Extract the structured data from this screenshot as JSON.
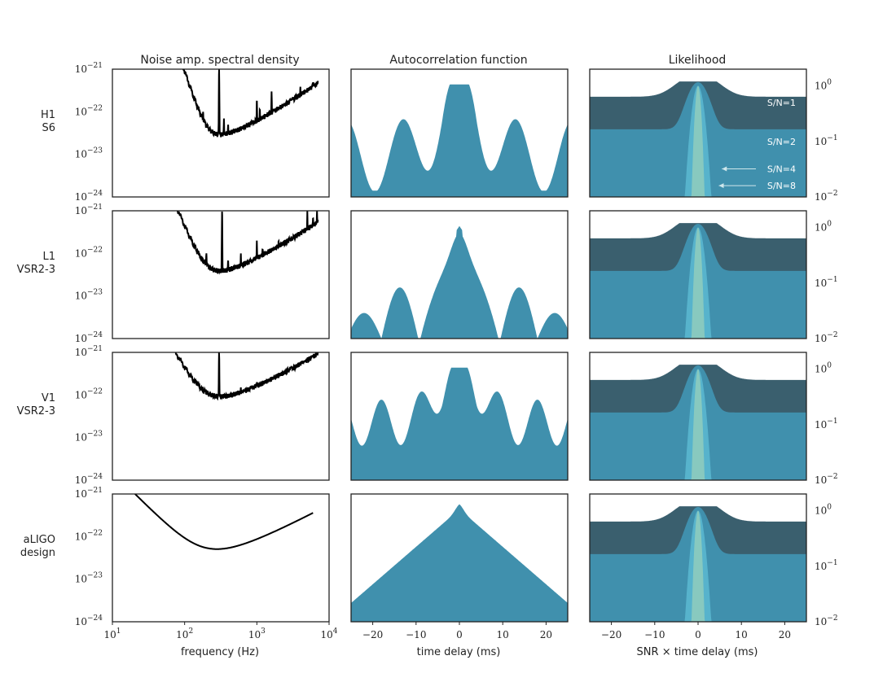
{
  "chart_data": {
    "type": "line",
    "columns": [
      {
        "title": "Noise amp. spectral density",
        "xlabel": "frequency (Hz)",
        "xscale": "log",
        "xlim": [
          10,
          10000
        ],
        "ylim": [
          1e-24,
          1e-21
        ],
        "xticks": [
          {
            "b": "10",
            "e": "1"
          },
          {
            "b": "10",
            "e": "2"
          },
          {
            "b": "10",
            "e": "3"
          },
          {
            "b": "10",
            "e": "4"
          }
        ],
        "yticks": [
          {
            "b": "10",
            "e": "−21"
          },
          {
            "b": "10",
            "e": "−22"
          },
          {
            "b": "10",
            "e": "−23"
          },
          {
            "b": "10",
            "e": "−24"
          }
        ]
      },
      {
        "title": "Autocorrelation function",
        "xlabel": "time delay (ms)",
        "xlim": [
          -25,
          25
        ],
        "xticks": [
          "−20",
          "−10",
          "0",
          "10",
          "20"
        ]
      },
      {
        "title": "Likelihood",
        "xlabel": "SNR × time delay (ms)",
        "xlim": [
          -25,
          25
        ],
        "ylim": [
          0.01,
          2
        ],
        "xticks": [
          "−20",
          "−10",
          "0",
          "10",
          "20"
        ],
        "yticks": [
          {
            "b": "10",
            "e": "0"
          },
          {
            "b": "10",
            "e": "−1"
          },
          {
            "b": "10",
            "e": "−2"
          }
        ]
      }
    ],
    "rows": [
      {
        "line1": "H1",
        "line2": "S6",
        "asd": {
          "start": 44,
          "end": 7000,
          "floor": 1.7e-23,
          "fmin": 220,
          "lowexp": 5,
          "highexp": 1.15,
          "top": 5e-22,
          "lines": [
            [
              46,
              9e-22
            ],
            [
              50,
              5e-22
            ],
            [
              60,
              4e-22
            ],
            [
              120,
              1.2e-22
            ],
            [
              180,
              1e-22
            ],
            [
              300,
              1e-21
            ],
            [
              350,
              7e-23
            ],
            [
              400,
              5e-23
            ],
            [
              1000,
              2e-22
            ],
            [
              1100,
              1.2e-22
            ],
            [
              1600,
              3e-22
            ],
            [
              4000,
              4e-22
            ],
            [
              6000,
              5e-22
            ]
          ]
        },
        "acf": {
          "shape": "oscillating",
          "peak": 0.88,
          "main": 0.55,
          "sl_amp": 0.28,
          "sl_period": 13,
          "floor": 0.32,
          "min": 0.05
        }
      },
      {
        "line1": "L1",
        "line2": "VSR2-3",
        "asd": {
          "start": 45,
          "end": 7000,
          "floor": 2.2e-23,
          "fmin": 210,
          "lowexp": 4,
          "highexp": 1.1,
          "top": 8e-22,
          "lines": [
            [
              46,
              1e-21
            ],
            [
              55,
              9e-22
            ],
            [
              120,
              1.5e-22
            ],
            [
              150,
              1.2e-22
            ],
            [
              200,
              1e-22
            ],
            [
              330,
              1e-21
            ],
            [
              400,
              7e-23
            ],
            [
              600,
              1e-22
            ],
            [
              1000,
              2e-22
            ],
            [
              1200,
              1.3e-22
            ],
            [
              2000,
              2e-22
            ],
            [
              3000,
              2.5e-22
            ],
            [
              5000,
              1e-21
            ],
            [
              6000,
              7e-22
            ],
            [
              6800,
              1e-21
            ]
          ]
        },
        "acf": {
          "shape": "lobed",
          "peak": 0.88
        }
      },
      {
        "line1": "V1",
        "line2": "VSR2-3",
        "asd": {
          "start": 40,
          "end": 7000,
          "floor": 5e-23,
          "fmin": 200,
          "lowexp": 3,
          "highexp": 1.0,
          "top": 3e-22,
          "lines": [
            [
              46,
              7e-22
            ],
            [
              50,
              4e-22
            ],
            [
              55,
              7e-22
            ],
            [
              60,
              3e-22
            ],
            [
              100,
              4e-22
            ],
            [
              150,
              2e-22
            ],
            [
              300,
              1e-21
            ],
            [
              350,
              1e-22
            ],
            [
              600,
              1.5e-22
            ],
            [
              1000,
              2e-22
            ],
            [
              2000,
              2e-22
            ],
            [
              5000,
              5e-22
            ],
            [
              7000,
              1e-21
            ]
          ]
        },
        "acf": {
          "shape": "oscillating",
          "peak": 0.88,
          "main": 0.45,
          "sl_amp": 0.18,
          "sl_period": 9,
          "floor": 0.45,
          "min": 0.2
        }
      },
      {
        "line1": "aLIGO",
        "line2": "design",
        "asd": {
          "start": 10,
          "end": 6000,
          "floor": 3.5e-23,
          "fmin": 220,
          "lowexp": 1.7,
          "highexp": 0.9,
          "top": 1.8e-22,
          "smooth": true,
          "lines": [
            [
              500,
              4e-23
            ]
          ]
        },
        "acf": {
          "shape": "triangle",
          "peak": 0.88
        }
      }
    ],
    "likelihood": {
      "snr_labels": [
        {
          "text": "S/N=1",
          "y": 0.5
        },
        {
          "text": "S/N=2",
          "y": 0.1
        },
        {
          "text": "S/N=4",
          "y": 0.032
        },
        {
          "text": "S/N=8",
          "y": 0.016
        }
      ],
      "snr": [
        1,
        2,
        4,
        8
      ],
      "colors": [
        "#3a5f6e",
        "#4090ad",
        "#57b3cc",
        "#88c9bf"
      ]
    },
    "colors": {
      "acf": "#4090ad",
      "asd": "#000000"
    }
  }
}
